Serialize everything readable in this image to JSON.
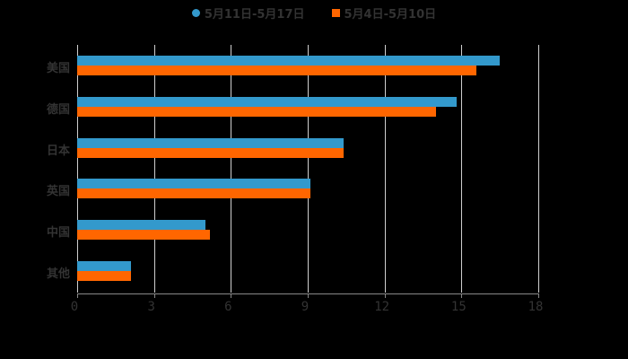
{
  "legend": [
    {
      "label": "5月11日-5月17日",
      "color": "#3399cc",
      "shape": "circle"
    },
    {
      "label": "5月4日-5月10日",
      "color": "#ff6600",
      "shape": "square"
    }
  ],
  "chart_data": {
    "type": "bar",
    "orientation": "horizontal",
    "title": "",
    "xlabel": "",
    "ylabel": "",
    "categories": [
      "美国",
      "德国",
      "日本",
      "英国",
      "中国",
      "其他"
    ],
    "series": [
      {
        "name": "5月11日-5月17日",
        "color": "#3399cc",
        "values": [
          16.5,
          14.8,
          10.4,
          9.1,
          5.0,
          2.1
        ]
      },
      {
        "name": "5月4日-5月10日",
        "color": "#ff6600",
        "values": [
          15.6,
          14.0,
          10.4,
          9.1,
          5.2,
          2.1
        ]
      }
    ],
    "xlim": [
      0,
      18
    ],
    "xticks": [
      0,
      3,
      6,
      9,
      12,
      15,
      18
    ],
    "grid": true,
    "legend_position": "top"
  },
  "axis": {
    "ticks": [
      "0",
      "3",
      "6",
      "9",
      "12",
      "15",
      "18"
    ]
  }
}
